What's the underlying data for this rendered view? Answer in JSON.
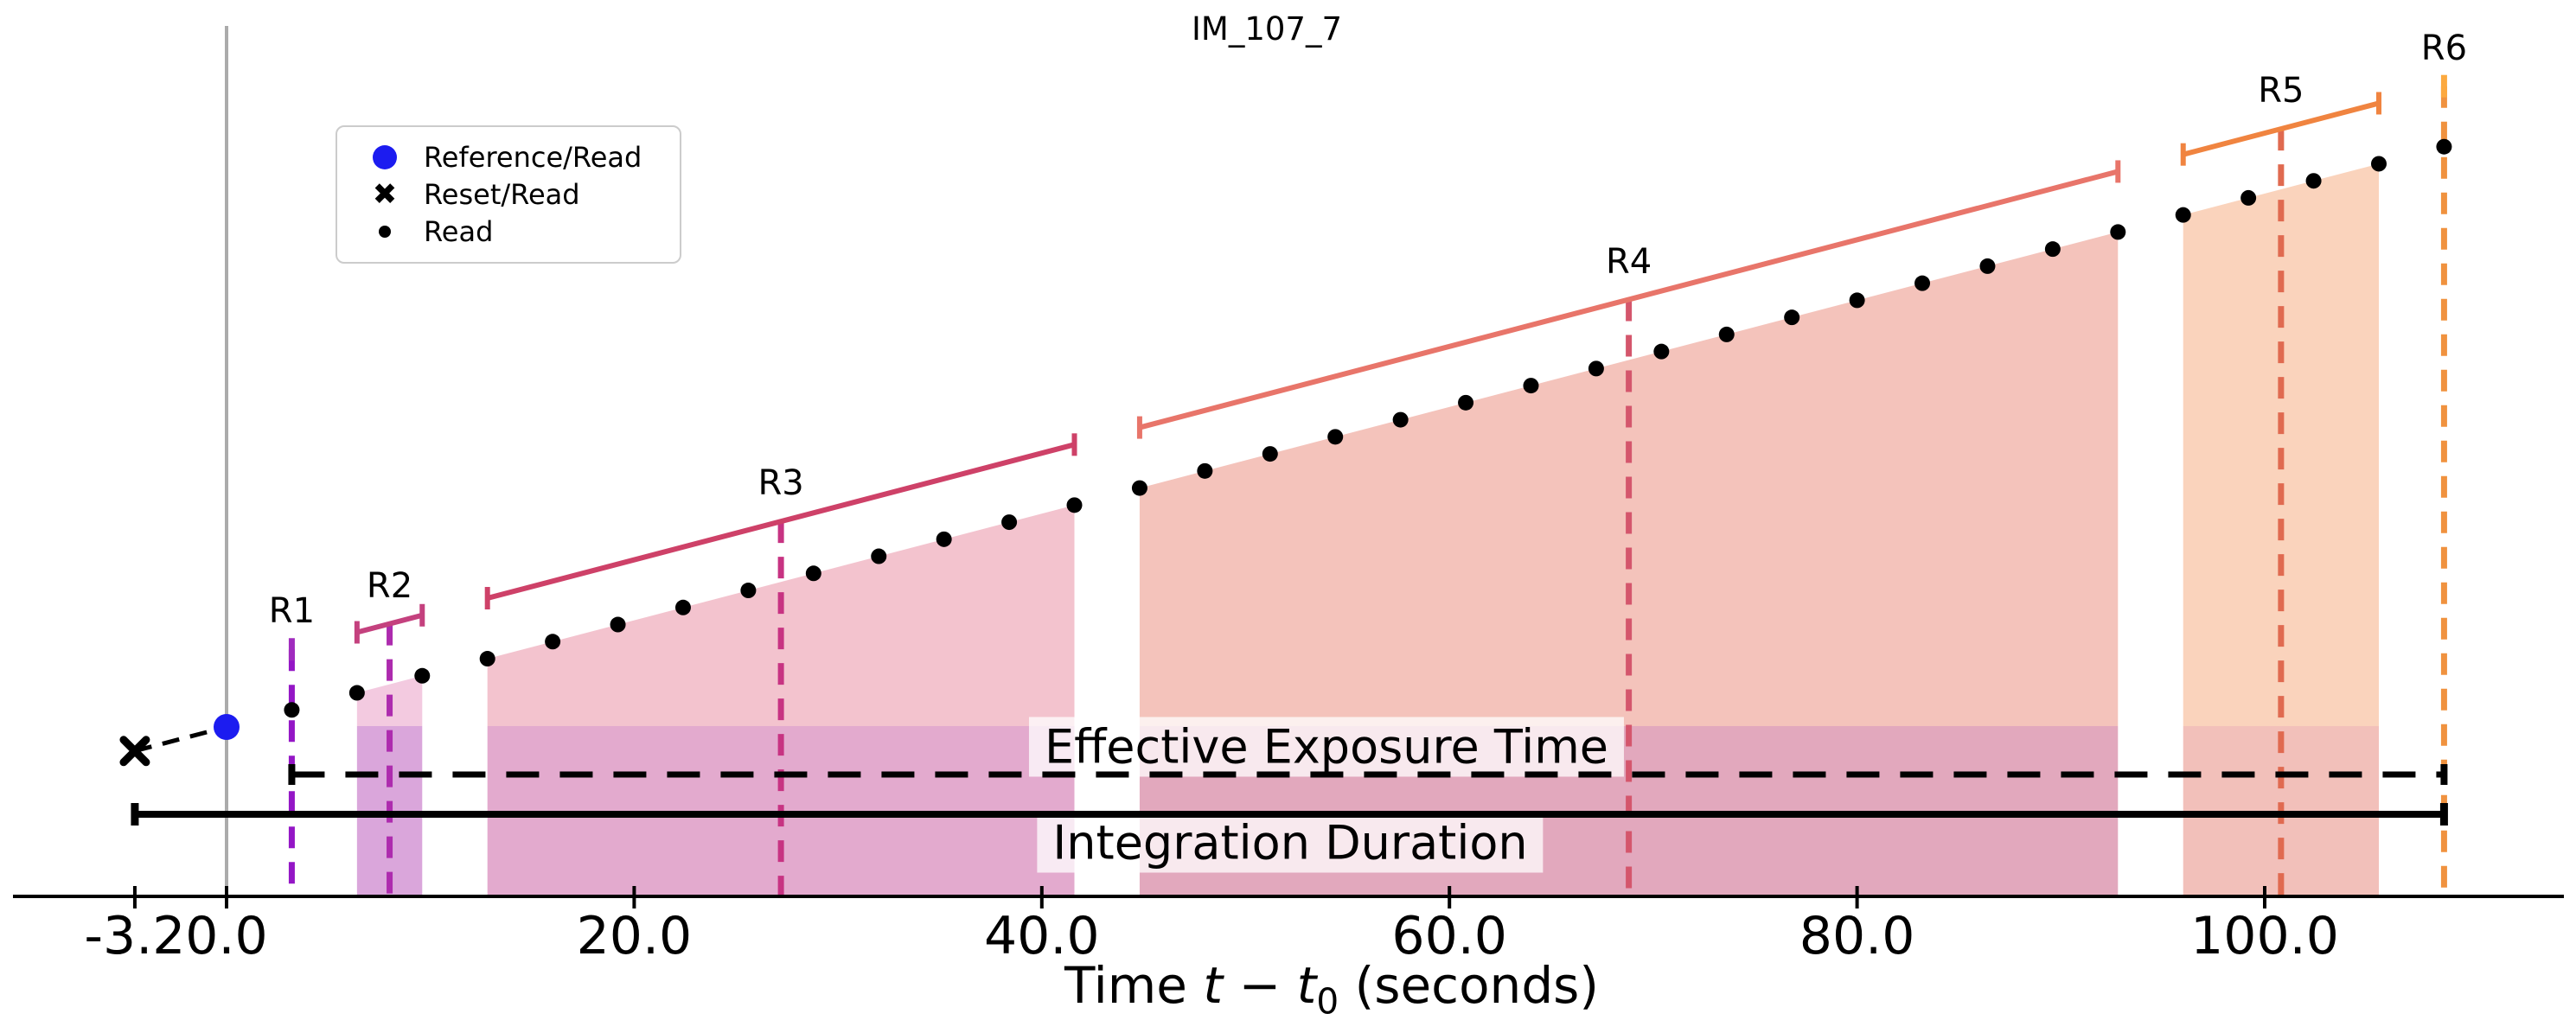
{
  "title": "IM_107_7",
  "xlabel_parts": {
    "prefix": "Time ",
    "var1": "t",
    "minus": " − ",
    "var2": "t",
    "sub": "0",
    "suffix": " (seconds)"
  },
  "legend": {
    "items": [
      {
        "label": "Reference/Read",
        "marker": "blue-circle",
        "color": "#1c1cf0"
      },
      {
        "label": "Reset/Read",
        "marker": "black-x",
        "color": "#000000"
      },
      {
        "label": "Read",
        "marker": "black-dot",
        "color": "#000000"
      }
    ]
  },
  "chart_data": {
    "type": "scatter",
    "title": "IM_107_7",
    "xlabel": "Time t - t0 (seconds)",
    "x_unit": "seconds",
    "frame_time_s": 3.2,
    "xlim": [
      -11,
      115
    ],
    "reset_read": {
      "t_label": -3.2,
      "t_pos": -4.5
    },
    "reference_read": {
      "t": 0.0
    },
    "zero_time_line": {
      "t": 0.0,
      "color": "#ababab"
    },
    "ticks": [
      {
        "label": "-3.2",
        "t": -4.5
      },
      {
        "label": "0.0",
        "t": 0
      },
      {
        "label": "20.0",
        "t": 20
      },
      {
        "label": "40.0",
        "t": 40
      },
      {
        "label": "60.0",
        "t": 60
      },
      {
        "label": "80.0",
        "t": 80
      },
      {
        "label": "100.0",
        "t": 100
      }
    ],
    "groups": [
      {
        "label": "R1",
        "reads": [
          3.2
        ],
        "dash_color": "#9416c6",
        "bracket_color": "#a02bbe",
        "band_top": null,
        "band_bottom": null
      },
      {
        "label": "R2",
        "reads": [
          6.4,
          9.6
        ],
        "dash_color": "#ad2bae",
        "bracket_color": "#c4417e",
        "band_top": "#f3cae0",
        "band_bottom": "#daa6db"
      },
      {
        "label": "R3",
        "reads": [
          12.8,
          16.0,
          19.2,
          22.4,
          25.6,
          28.8,
          32.0,
          35.2,
          38.4,
          41.6
        ],
        "dash_color": "#c73382",
        "bracket_color": "#ce4168",
        "band_top": "#f3c3ce",
        "band_bottom": "#e3aace"
      },
      {
        "label": "R4",
        "reads": [
          44.8,
          48.0,
          51.2,
          54.4,
          57.6,
          60.8,
          64.0,
          67.2,
          70.4,
          73.6,
          76.8,
          80.0,
          83.2,
          86.4,
          89.6,
          92.8
        ],
        "dash_color": "#d4566c",
        "bracket_color": "#e8756a",
        "band_top": "#f4c3bb",
        "band_bottom": "#e2a8bd"
      },
      {
        "label": "R5",
        "reads": [
          96.0,
          99.2,
          102.4,
          105.6
        ],
        "dash_color": "#e06a50",
        "bracket_color": "#f08440",
        "band_top": "#fad3bc",
        "band_bottom": "#f2c0ba"
      },
      {
        "label": "R6",
        "reads": [
          108.8
        ],
        "dash_color": "#f0923f",
        "bracket_color": "#fca93f",
        "band_top": null,
        "band_bottom": null
      }
    ],
    "annotations": {
      "effective_exposure": {
        "label": "Effective Exposure Time",
        "t_start": 3.2,
        "t_end": 108.8,
        "style": "dashed"
      },
      "integration_duration": {
        "label": "Integration Duration",
        "t_start": -4.5,
        "t_end": 108.8,
        "style": "solid"
      }
    },
    "marker_colors": {
      "read": "#000000",
      "reference": "#1c1cf0",
      "reset": "#000000"
    }
  }
}
